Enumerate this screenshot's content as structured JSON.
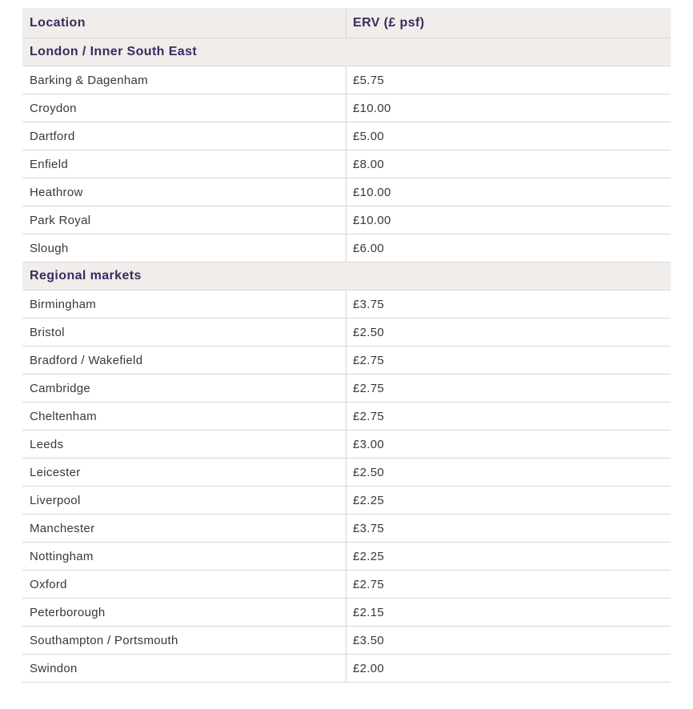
{
  "chart_data": {
    "type": "table",
    "columns": [
      {
        "label": "Location"
      },
      {
        "label": "ERV (£ psf)"
      }
    ],
    "sections": [
      {
        "title": "London / Inner South East",
        "rows": [
          {
            "location": "Barking & Dagenham",
            "erv_psf": "£5.75"
          },
          {
            "location": "Croydon",
            "erv_psf": "£10.00"
          },
          {
            "location": "Dartford",
            "erv_psf": "£5.00"
          },
          {
            "location": "Enfield",
            "erv_psf": "£8.00"
          },
          {
            "location": "Heathrow",
            "erv_psf": "£10.00"
          },
          {
            "location": "Park Royal",
            "erv_psf": "£10.00"
          },
          {
            "location": "Slough",
            "erv_psf": "£6.00"
          }
        ]
      },
      {
        "title": "Regional markets",
        "rows": [
          {
            "location": "Birmingham",
            "erv_psf": "£3.75"
          },
          {
            "location": "Bristol",
            "erv_psf": "£2.50"
          },
          {
            "location": "Bradford / Wakefield",
            "erv_psf": "£2.75"
          },
          {
            "location": "Cambridge",
            "erv_psf": "£2.75"
          },
          {
            "location": "Cheltenham",
            "erv_psf": "£2.75"
          },
          {
            "location": "Leeds",
            "erv_psf": "£3.00"
          },
          {
            "location": "Leicester",
            "erv_psf": "£2.50"
          },
          {
            "location": "Liverpool",
            "erv_psf": "£2.25"
          },
          {
            "location": "Manchester",
            "erv_psf": "£3.75"
          },
          {
            "location": "Nottingham",
            "erv_psf": "£2.25"
          },
          {
            "location": "Oxford",
            "erv_psf": "£2.75"
          },
          {
            "location": "Peterborough",
            "erv_psf": "£2.15"
          },
          {
            "location": "Southampton / Portsmouth",
            "erv_psf": "£3.50"
          },
          {
            "location": "Swindon",
            "erv_psf": "£2.00"
          }
        ]
      }
    ]
  },
  "colors": {
    "header_bg": "#f0edea",
    "heading_text": "#392a62",
    "body_text": "#383838",
    "border": "#d9d6d3"
  }
}
